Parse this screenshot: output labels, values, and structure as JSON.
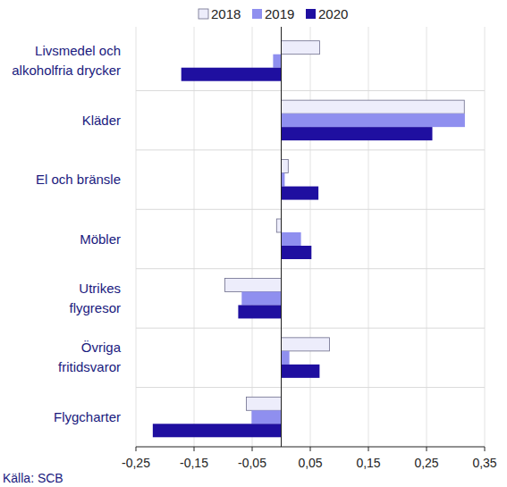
{
  "chart_data": {
    "type": "bar",
    "orientation": "horizontal",
    "categories": [
      "Livsmedel och\nalkoholfria drycker",
      "Kläder",
      "El och bränsle",
      "Möbler",
      "Utrikes\nflygresor",
      "Övriga\nfritidsvaror",
      "Flygcharter"
    ],
    "series": [
      {
        "name": "2018",
        "color": "#ededfb",
        "values": [
          0.066,
          0.315,
          0.012,
          -0.008,
          -0.097,
          0.083,
          -0.06
        ]
      },
      {
        "name": "2019",
        "color": "#8f8fef",
        "values": [
          -0.014,
          0.316,
          0.006,
          0.034,
          -0.068,
          0.014,
          -0.051
        ]
      },
      {
        "name": "2020",
        "color": "#1f0fa0",
        "values": [
          -0.172,
          0.26,
          0.064,
          0.052,
          -0.074,
          0.066,
          -0.221
        ]
      }
    ],
    "xlim": [
      -0.25,
      0.35
    ],
    "xticks": [
      {
        "value": -0.25,
        "label": "-0,25"
      },
      {
        "value": -0.15,
        "label": "-0,15"
      },
      {
        "value": -0.05,
        "label": "-0,05"
      },
      {
        "value": 0.05,
        "label": "0,05"
      },
      {
        "value": 0.15,
        "label": "0,15"
      },
      {
        "value": 0.25,
        "label": "0,25"
      },
      {
        "value": 0.35,
        "label": "0,35"
      }
    ],
    "grid": true,
    "legend": "top",
    "source": "Källa: SCB"
  }
}
